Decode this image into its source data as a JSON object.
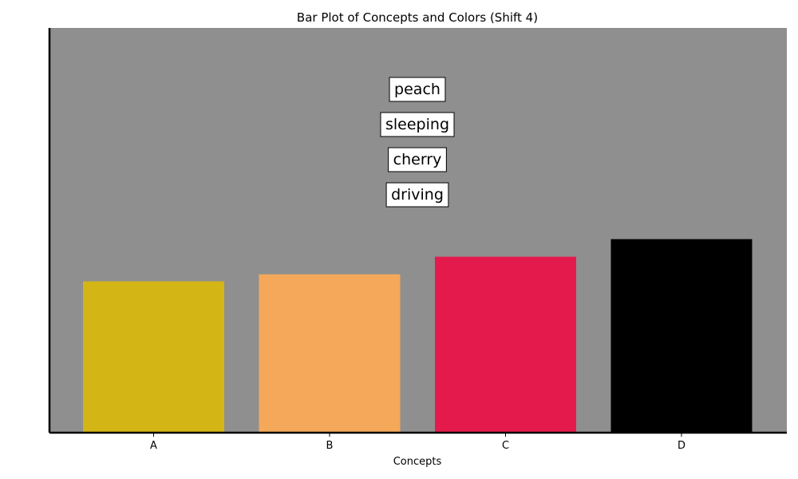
{
  "chart_data": {
    "type": "bar",
    "title": "Bar Plot of Concepts and Colors (Shift 4)",
    "xlabel": "Concepts",
    "ylabel": "",
    "categories": [
      "A",
      "B",
      "C",
      "D"
    ],
    "values": [
      0.43,
      0.45,
      0.5,
      0.55
    ],
    "bar_colors": [
      "#d4b516",
      "#f5a85a",
      "#e51a4c",
      "#000000"
    ],
    "ylim": [
      0,
      1.15
    ],
    "y_ticks_shown": false,
    "grid": false,
    "plot_background": "#8f8f8f",
    "annotations": [
      "peach",
      "sleeping",
      "cherry",
      "driving"
    ]
  }
}
